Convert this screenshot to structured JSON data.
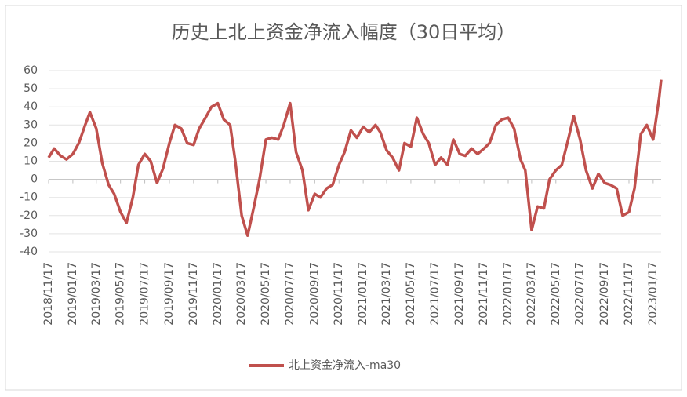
{
  "chart_data": {
    "type": "line",
    "title": "历史上北上资金净流入幅度（30日平均）",
    "x": [
      "2018/11/17",
      "2018/12/01",
      "2018/12/17",
      "2019/01/01",
      "2019/01/17",
      "2019/02/01",
      "2019/02/17",
      "2019/03/01",
      "2019/03/17",
      "2019/04/01",
      "2019/04/17",
      "2019/05/01",
      "2019/05/17",
      "2019/06/01",
      "2019/06/17",
      "2019/07/01",
      "2019/07/17",
      "2019/08/01",
      "2019/08/17",
      "2019/09/01",
      "2019/09/17",
      "2019/10/01",
      "2019/10/17",
      "2019/11/01",
      "2019/11/17",
      "2019/12/01",
      "2019/12/17",
      "2020/01/01",
      "2020/01/17",
      "2020/02/01",
      "2020/02/17",
      "2020/03/01",
      "2020/03/17",
      "2020/04/01",
      "2020/04/17",
      "2020/05/01",
      "2020/05/17",
      "2020/06/01",
      "2020/06/17",
      "2020/07/01",
      "2020/07/17",
      "2020/08/01",
      "2020/08/17",
      "2020/09/01",
      "2020/09/17",
      "2020/10/01",
      "2020/10/17",
      "2020/11/01",
      "2020/11/17",
      "2020/12/01",
      "2020/12/17",
      "2021/01/01",
      "2021/01/17",
      "2021/02/01",
      "2021/02/17",
      "2021/03/01",
      "2021/03/17",
      "2021/04/01",
      "2021/04/17",
      "2021/05/01",
      "2021/05/17",
      "2021/06/01",
      "2021/06/17",
      "2021/07/01",
      "2021/07/17",
      "2021/08/01",
      "2021/08/17",
      "2021/09/01",
      "2021/09/17",
      "2021/10/01",
      "2021/10/17",
      "2021/11/01",
      "2021/11/17",
      "2021/12/01",
      "2021/12/17",
      "2022/01/01",
      "2022/01/17",
      "2022/02/01",
      "2022/02/17",
      "2022/03/01",
      "2022/03/17",
      "2022/04/01",
      "2022/04/17",
      "2022/05/01",
      "2022/05/17",
      "2022/06/01",
      "2022/06/17",
      "2022/07/01",
      "2022/07/17",
      "2022/08/01",
      "2022/08/17",
      "2022/09/01",
      "2022/09/17",
      "2022/10/01",
      "2022/10/17",
      "2022/11/01",
      "2022/11/17",
      "2022/12/01",
      "2022/12/17",
      "2023/01/01",
      "2023/01/17",
      "2023/02/01",
      "2023/02/06"
    ],
    "series": [
      {
        "name": "北上资金净流入-ma30",
        "color": "#c0504d",
        "values": [
          12,
          17,
          13,
          11,
          14,
          20,
          30,
          37,
          28,
          9,
          -3,
          -8,
          -18,
          -24,
          -10,
          8,
          14,
          10,
          -2,
          6,
          20,
          30,
          28,
          20,
          19,
          28,
          34,
          40,
          42,
          33,
          30,
          10,
          -20,
          -31,
          -15,
          0,
          22,
          23,
          22,
          30,
          42,
          15,
          5,
          -17,
          -8,
          -10,
          -5,
          -3,
          8,
          15,
          27,
          23,
          29,
          26,
          30,
          26,
          16,
          12,
          5,
          20,
          18,
          34,
          25,
          20,
          8,
          12,
          8,
          22,
          14,
          13,
          17,
          14,
          17,
          20,
          30,
          33,
          34,
          28,
          11,
          5,
          -28,
          -15,
          -16,
          0,
          5,
          8,
          22,
          35,
          22,
          5,
          -5,
          3,
          -2,
          -3,
          -5,
          -20,
          -18,
          -5,
          25,
          30,
          22,
          45,
          55
        ]
      }
    ],
    "xlim": [
      "2018/11/17",
      "2023/02/06"
    ],
    "xticks": [
      "2018/11/17",
      "2019/01/17",
      "2019/03/17",
      "2019/05/17",
      "2019/07/17",
      "2019/09/17",
      "2019/11/17",
      "2020/01/17",
      "2020/03/17",
      "2020/05/17",
      "2020/07/17",
      "2020/09/17",
      "2020/11/17",
      "2021/01/17",
      "2021/03/17",
      "2021/05/17",
      "2021/07/17",
      "2021/09/17",
      "2021/11/17",
      "2022/01/17",
      "2022/03/17",
      "2022/05/17",
      "2022/07/17",
      "2022/09/17",
      "2022/11/17",
      "2023/01/17"
    ],
    "ylim": [
      -40,
      60
    ],
    "yticks": [
      -40,
      -30,
      -20,
      -10,
      0,
      10,
      20,
      30,
      40,
      50,
      60
    ],
    "grid": true
  }
}
